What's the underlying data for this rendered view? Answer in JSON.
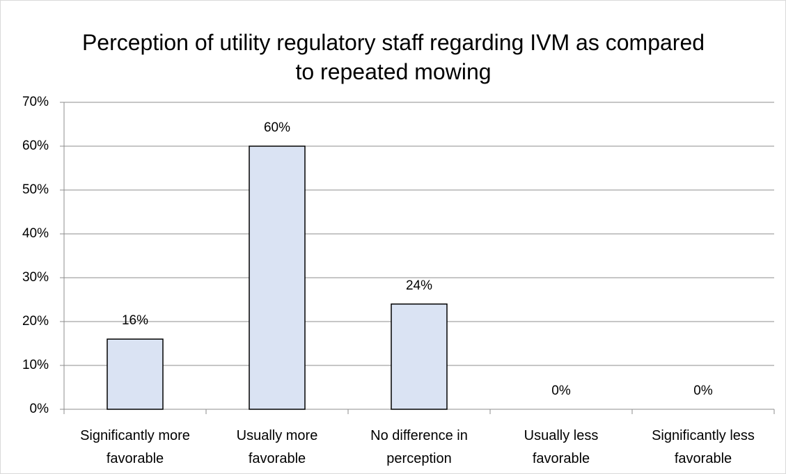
{
  "chart_data": {
    "type": "bar",
    "title": "Perception of utility regulatory staff regarding IVM as compared to repeated mowing",
    "categories": [
      "Significantly more favorable",
      "Usually more favorable",
      "No difference in perception",
      "Usually less favorable",
      "Significantly less favorable"
    ],
    "values": [
      16,
      60,
      24,
      0,
      0
    ],
    "value_labels": [
      "16%",
      "60%",
      "24%",
      "0%",
      "0%"
    ],
    "color": "#dae3f3",
    "ylim": [
      0,
      70
    ],
    "yticks": [
      {
        "value": 0,
        "label": "0%"
      },
      {
        "value": 10,
        "label": "10%"
      },
      {
        "value": 20,
        "label": "20%"
      },
      {
        "value": 30,
        "label": "30%"
      },
      {
        "value": 40,
        "label": "40%"
      },
      {
        "value": 50,
        "label": "50%"
      },
      {
        "value": 60,
        "label": "60%"
      },
      {
        "value": 70,
        "label": "70%"
      }
    ],
    "grid": true
  }
}
